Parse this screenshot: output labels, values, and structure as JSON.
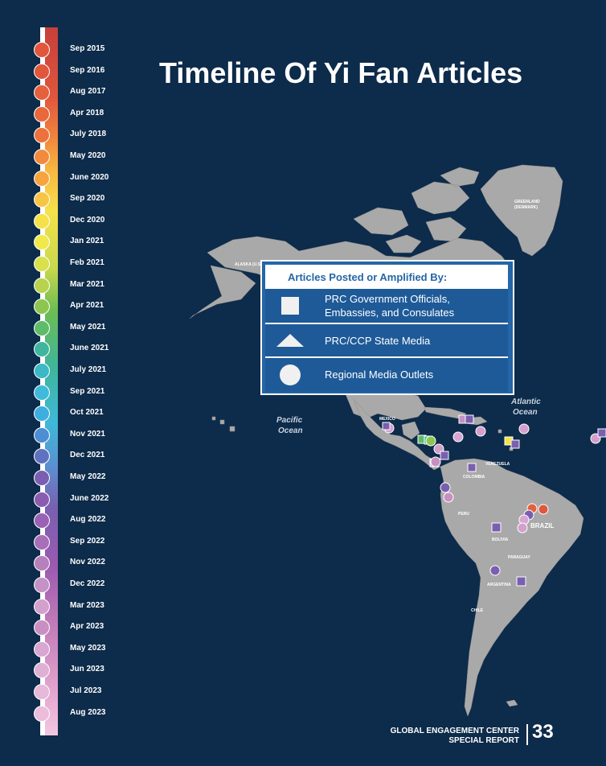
{
  "title": "Timeline Of Yi Fan Articles",
  "timeline": [
    {
      "label": "Sep 2015",
      "color": "#e0573d"
    },
    {
      "label": "Sep 2016",
      "color": "#e0573d"
    },
    {
      "label": "Aug 2017",
      "color": "#e5603c"
    },
    {
      "label": "Apr 2018",
      "color": "#e8683c"
    },
    {
      "label": "July 2018",
      "color": "#ec713c"
    },
    {
      "label": "May 2020",
      "color": "#f28a3d"
    },
    {
      "label": "June 2020",
      "color": "#f7a43f"
    },
    {
      "label": "Sep 2020",
      "color": "#f8c446"
    },
    {
      "label": "Dec 2020",
      "color": "#f5e24a"
    },
    {
      "label": "Jan 2021",
      "color": "#f0e94c"
    },
    {
      "label": "Feb 2021",
      "color": "#d8e04c"
    },
    {
      "label": "Mar 2021",
      "color": "#b9d24e"
    },
    {
      "label": "Apr 2021",
      "color": "#8cc650"
    },
    {
      "label": "May 2021",
      "color": "#5fbb6a"
    },
    {
      "label": "June 2021",
      "color": "#3fb5a0"
    },
    {
      "label": "July 2021",
      "color": "#3db8c6"
    },
    {
      "label": "Sep 2021",
      "color": "#3fbadb"
    },
    {
      "label": "Oct 2021",
      "color": "#3eaee0"
    },
    {
      "label": "Nov 2021",
      "color": "#4c8ed4"
    },
    {
      "label": "Dec 2021",
      "color": "#5f72c0"
    },
    {
      "label": "May 2022",
      "color": "#7a5fb0"
    },
    {
      "label": "June 2022",
      "color": "#8a5cb0"
    },
    {
      "label": "Aug 2022",
      "color": "#9a62b4"
    },
    {
      "label": "Sep 2022",
      "color": "#a86fb8"
    },
    {
      "label": "Nov 2022",
      "color": "#b680bd"
    },
    {
      "label": "Dec 2022",
      "color": "#c492c6"
    },
    {
      "label": "Mar 2023",
      "color": "#d39fcd"
    },
    {
      "label": "Apr 2023",
      "color": "#c98fc3"
    },
    {
      "label": "May 2023",
      "color": "#d8a6d2"
    },
    {
      "label": "Jun 2023",
      "color": "#dfb0d6"
    },
    {
      "label": "Jul 2023",
      "color": "#e6b8d9"
    },
    {
      "label": "Aug 2023",
      "color": "#ebbcdc"
    }
  ],
  "legend": {
    "title": "Articles Posted or Amplified By:",
    "items": [
      {
        "icon": "square-icon",
        "line1": "PRC Government Officials,",
        "line2": "Embassies, and Consulates"
      },
      {
        "icon": "triangle-icon",
        "line1": "PRC/CCP State Media"
      },
      {
        "icon": "circle-icon",
        "line1": "Regional Media Outlets"
      }
    ]
  },
  "map": {
    "land_color": "#a9a9a9",
    "ocean_color": "#0d2b4a",
    "ocean_labels": {
      "atlantic_line1": "Atlantic",
      "atlantic_line2": "Ocean",
      "pacific_line1": "Pacific",
      "pacific_line2": "Ocean"
    },
    "country_labels": {
      "greenland_line1": "GREENLAND",
      "greenland_line2": "(DENMARK)",
      "alaska": "ALASKA (U.S.)",
      "mexico": "MEXICO",
      "venezuela": "VENEZUELA",
      "colombia": "COLOMBIA",
      "peru": "PERU",
      "bolivia": "BOLIVIA",
      "brazil": "BRAZIL",
      "argentina": "ARGENTINA",
      "chile": "CHILE",
      "paraguay": "PARAGUAY"
    }
  },
  "footer": {
    "org_line1": "GLOBAL ENGAGEMENT CENTER",
    "org_line2": "SPECIAL REPORT",
    "page_number": "33"
  }
}
